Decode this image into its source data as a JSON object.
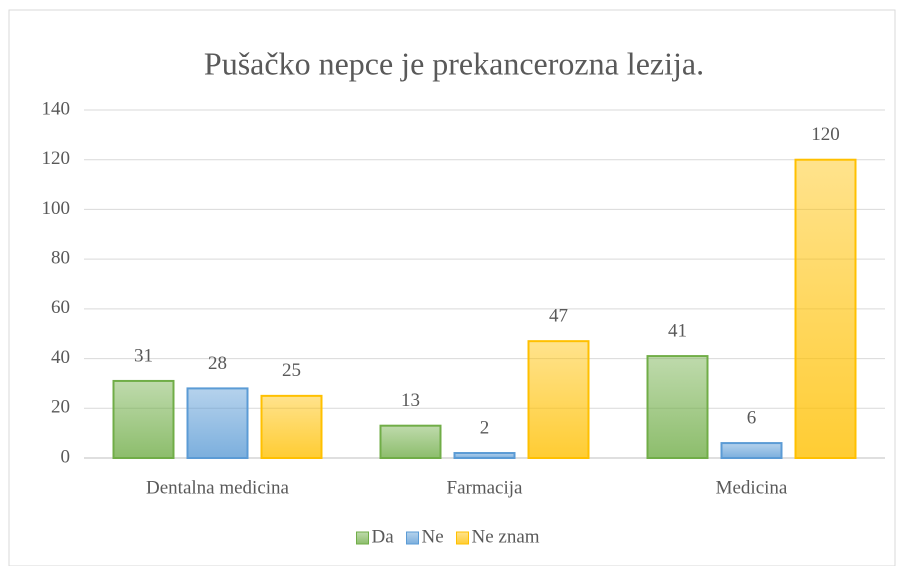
{
  "chart_data": {
    "type": "bar",
    "title": "Pušačko nepce je prekancerozna lezija.",
    "categories": [
      "Dentalna medicina",
      "Farmacija",
      "Medicina"
    ],
    "series": [
      {
        "name": "Da",
        "color": "#70ad47",
        "values": [
          31,
          13,
          41
        ]
      },
      {
        "name": "Ne",
        "color": "#5b9bd5",
        "values": [
          28,
          2,
          6
        ]
      },
      {
        "name": "Ne znam",
        "color": "#ffc000",
        "values": [
          25,
          47,
          120
        ]
      }
    ],
    "ylim": [
      0,
      140
    ],
    "yticks": [
      0,
      20,
      40,
      60,
      80,
      100,
      120,
      140
    ],
    "grid": true,
    "legend": "bottom"
  }
}
